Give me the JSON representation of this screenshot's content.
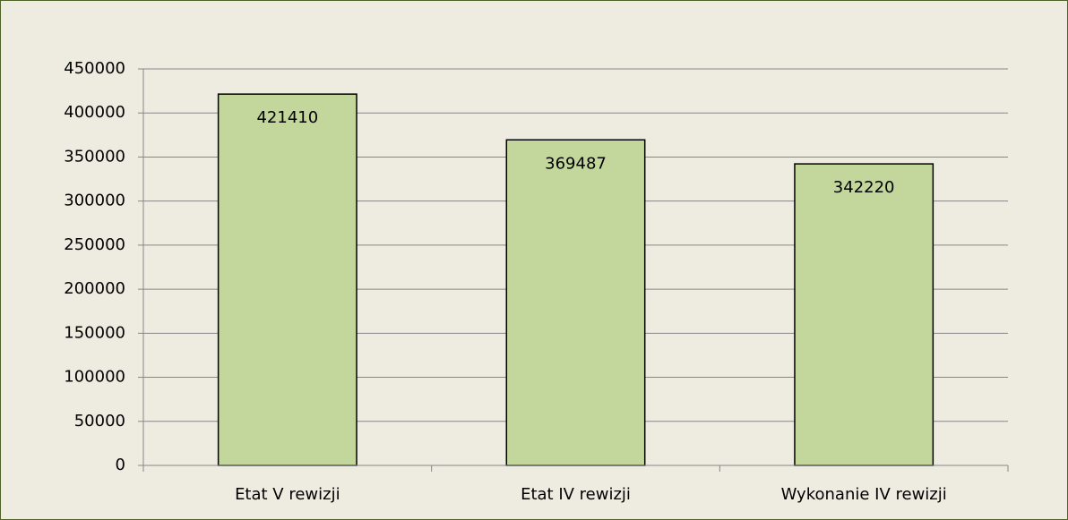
{
  "chart_data": {
    "type": "bar",
    "categories": [
      "Etat V rewizji",
      "Etat IV rewizji",
      "Wykonanie IV rewizji"
    ],
    "values": [
      421410,
      369487,
      342220
    ],
    "color": "#c3d69b",
    "ylim": [
      0,
      450000
    ],
    "yticks": [
      0,
      50000,
      100000,
      150000,
      200000,
      250000,
      300000,
      350000,
      400000,
      450000
    ],
    "grid": true
  }
}
